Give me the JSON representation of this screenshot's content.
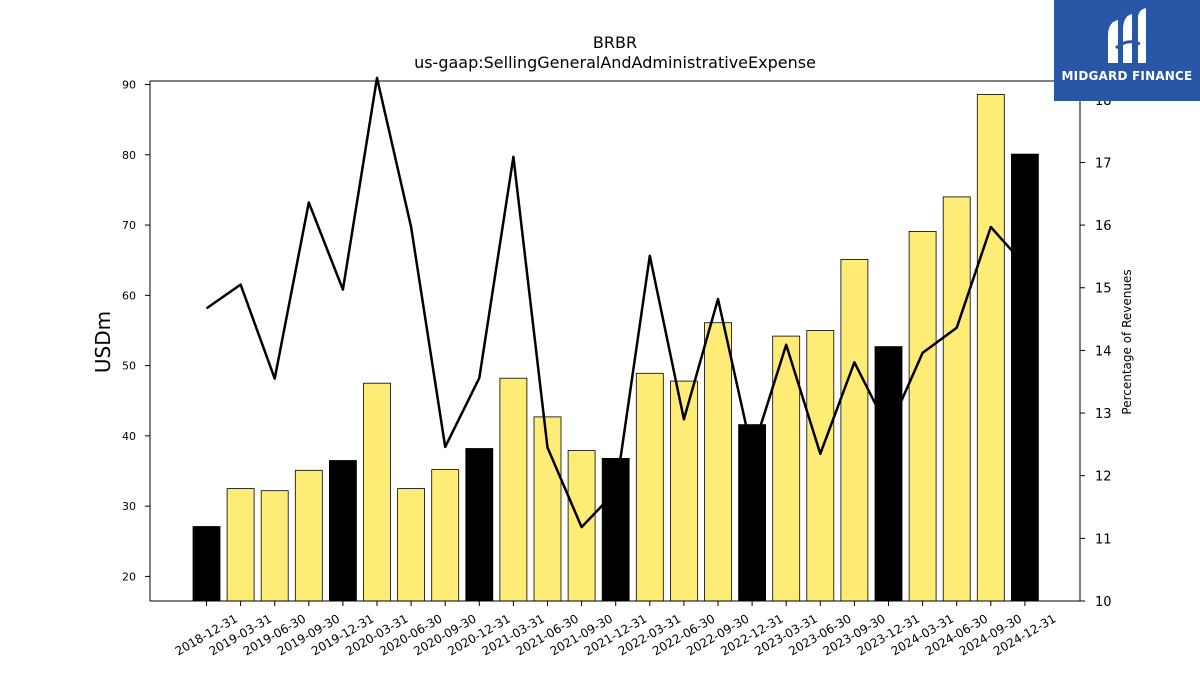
{
  "chart_data": {
    "type": "bar+line",
    "title": "BRBR",
    "subtitle": "us-gaap:SellingGeneralAndAdministrativeExpense",
    "ylabel": "USDm",
    "ylabel_right": "Percentage of Revenues",
    "ylim": [
      16.5,
      90.5
    ],
    "ylim_right": [
      10,
      18.3
    ],
    "yticks": [
      20,
      30,
      40,
      50,
      60,
      70,
      80,
      90
    ],
    "yticks_right": [
      10,
      11,
      12,
      13,
      14,
      15,
      16,
      17,
      18
    ],
    "grid": false,
    "categories": [
      "2018-12-31",
      "2019-03-31",
      "2019-06-30",
      "2019-09-30",
      "2019-12-31",
      "2020-03-31",
      "2020-06-30",
      "2020-09-30",
      "2020-12-31",
      "2021-03-31",
      "2021-06-30",
      "2021-09-30",
      "2021-12-31",
      "2022-03-31",
      "2022-06-30",
      "2022-09-30",
      "2022-12-31",
      "2023-03-31",
      "2023-06-30",
      "2023-09-30",
      "2023-12-31",
      "2024-03-31",
      "2024-06-30",
      "2024-09-30",
      "2024-12-31"
    ],
    "series": [
      {
        "type": "bar",
        "values": [
          27.1,
          32.5,
          32.2,
          35.1,
          36.5,
          47.5,
          32.5,
          35.2,
          38.2,
          48.2,
          42.7,
          37.9,
          36.8,
          48.9,
          47.8,
          56.1,
          41.6,
          54.2,
          55.0,
          65.1,
          52.7,
          69.1,
          74.0,
          88.6,
          80.1
        ],
        "colors": [
          "#000000",
          "#ffec77",
          "#ffec77",
          "#ffec77",
          "#000000",
          "#ffec77",
          "#ffec77",
          "#ffec77",
          "#000000",
          "#ffec77",
          "#ffec77",
          "#ffec77",
          "#000000",
          "#ffec77",
          "#ffec77",
          "#ffec77",
          "#000000",
          "#ffec77",
          "#ffec77",
          "#ffec77",
          "#000000",
          "#ffec77",
          "#ffec77",
          "#ffec77",
          "#000000"
        ]
      },
      {
        "type": "line",
        "axis": "right",
        "color": "#000000",
        "values": [
          14.67,
          15.05,
          13.55,
          16.36,
          14.97,
          18.35,
          15.97,
          12.46,
          13.56,
          17.09,
          12.45,
          11.18,
          11.75,
          15.51,
          12.9,
          14.82,
          12.37,
          14.09,
          12.35,
          13.81,
          12.73,
          13.96,
          14.36,
          15.97,
          15.36
        ]
      }
    ]
  },
  "logo": {
    "text": "MIDGARD FINANCE",
    "background": "#2a56a8"
  }
}
